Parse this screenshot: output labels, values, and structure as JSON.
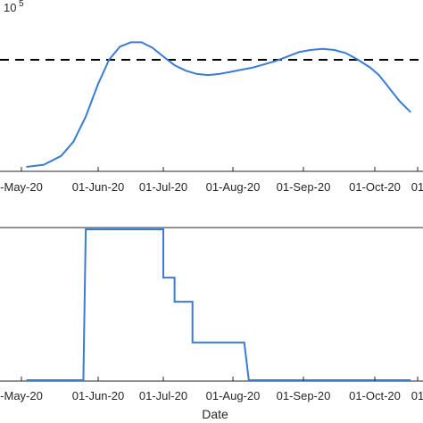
{
  "chart_data": [
    {
      "type": "line",
      "title": "",
      "xlabel": "",
      "ylabel": "",
      "y_exponent_label": "10",
      "y_exponent_power": "5",
      "x_ticks": [
        "-May-20",
        "01-Jun-20",
        "01-Jul-20",
        "01-Aug-20",
        "01-Sep-20",
        "01-Oct-20",
        "01"
      ],
      "x_range": [
        "2020-05-03",
        "2020-10-27"
      ],
      "y_range": [
        0,
        1.2
      ],
      "grid": false,
      "series": [
        {
          "color": "#3a7bd5",
          "style": "solid",
          "x": [
            "2020-05-03",
            "2020-05-10",
            "2020-05-17",
            "2020-05-22",
            "2020-05-27",
            "2020-06-01",
            "2020-06-06",
            "2020-06-11",
            "2020-06-16",
            "2020-06-21",
            "2020-06-26",
            "2020-07-01",
            "2020-07-06",
            "2020-07-11",
            "2020-07-16",
            "2020-07-21",
            "2020-07-26",
            "2020-07-31",
            "2020-08-05",
            "2020-08-10",
            "2020-08-15",
            "2020-08-20",
            "2020-08-25",
            "2020-08-30",
            "2020-09-04",
            "2020-09-09",
            "2020-09-14",
            "2020-09-19",
            "2020-09-24",
            "2020-09-29",
            "2020-10-04",
            "2020-10-09",
            "2020-10-14",
            "2020-10-19",
            "2020-10-27"
          ],
          "y": [
            0.02,
            0.04,
            0.12,
            0.25,
            0.48,
            0.78,
            1.0,
            1.12,
            1.16,
            1.16,
            1.11,
            1.03,
            0.95,
            0.9,
            0.87,
            0.86,
            0.87,
            0.89,
            0.91,
            0.93,
            0.96,
            0.99,
            1.03,
            1.07,
            1.09,
            1.1,
            1.09,
            1.06,
            1.0,
            0.93,
            0.86,
            0.78,
            0.7,
            0.62,
            0.52
          ]
        },
        {
          "color": "#000000",
          "style": "dashed",
          "x": [
            "2020-05-03",
            "2020-10-27"
          ],
          "y": [
            1.0,
            1.0
          ]
        }
      ]
    },
    {
      "type": "line",
      "title": "",
      "xlabel": "Date",
      "ylabel": "",
      "x_ticks": [
        "-May-20",
        "01-Jun-20",
        "01-Jul-20",
        "01-Aug-20",
        "01-Sep-20",
        "01-Oct-20",
        "01"
      ],
      "x_range": [
        "2020-05-03",
        "2020-10-27"
      ],
      "y_range": [
        0,
        1
      ],
      "grid": false,
      "series": [
        {
          "color": "#3a7bd5",
          "style": "solid",
          "x": [
            "2020-05-03",
            "2020-05-26",
            "2020-05-27",
            "2020-06-28",
            "2020-07-01",
            "2020-07-01",
            "2020-07-06",
            "2020-07-06",
            "2020-07-14",
            "2020-07-14",
            "2020-08-06",
            "2020-08-08",
            "2020-10-27"
          ],
          "y": [
            0,
            0,
            1,
            1,
            1,
            0.68,
            0.68,
            0.52,
            0.52,
            0.25,
            0.25,
            0,
            0
          ]
        }
      ]
    }
  ]
}
